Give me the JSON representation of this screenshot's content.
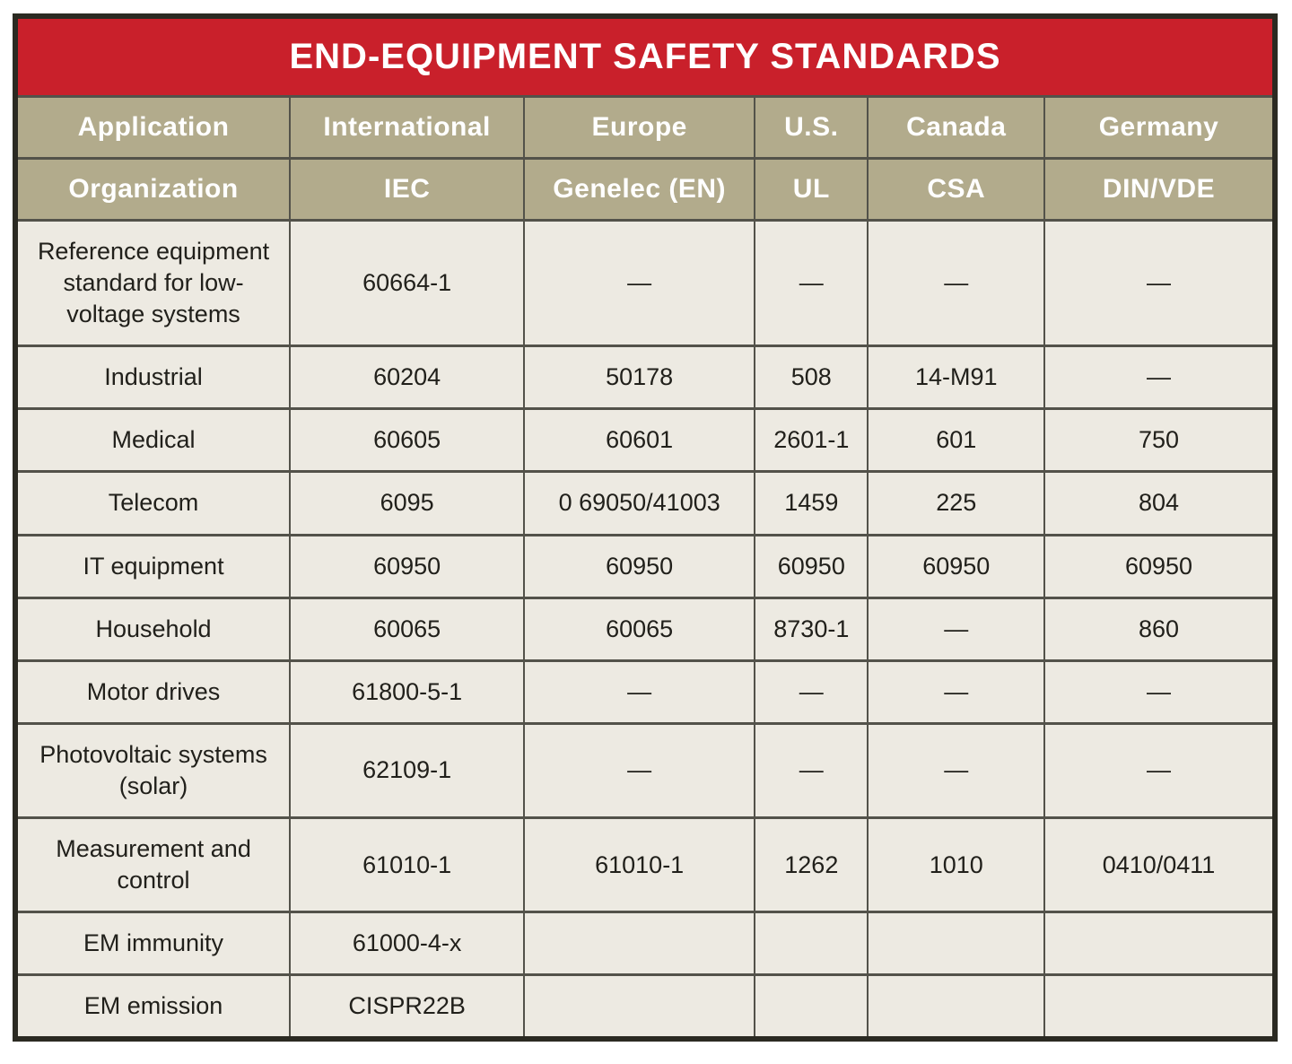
{
  "colors": {
    "title_bar_red": "#c9202b",
    "header_tan": "#b2ab8c",
    "cell_cream": "#edeae2",
    "grid_line": "#53524a",
    "outer_border": "#2b2a22",
    "header_text": "#ffffff",
    "body_text": "#21201b"
  },
  "chart_data": {
    "type": "table",
    "title": "END-EQUIPMENT SAFETY STANDARDS",
    "header_row_application": [
      "Application",
      "International",
      "Europe",
      "U.S.",
      "Canada",
      "Germany"
    ],
    "header_row_organization": [
      "Organization",
      "IEC",
      "Genelec (EN)",
      "UL",
      "CSA",
      "DIN/VDE"
    ],
    "rows": [
      [
        "Reference equipment standard for low-voltage systems",
        "60664-1",
        "—",
        "—",
        "—",
        "—"
      ],
      [
        "Industrial",
        "60204",
        "50178",
        "508",
        "14-M91",
        "—"
      ],
      [
        "Medical",
        "60605",
        "60601",
        "2601-1",
        "601",
        "750"
      ],
      [
        "Telecom",
        "6095",
        "0 69050/41003",
        "1459",
        "225",
        "804"
      ],
      [
        "IT equipment",
        "60950",
        "60950",
        "60950",
        "60950",
        "60950"
      ],
      [
        "Household",
        "60065",
        "60065",
        "8730-1",
        "—",
        "860"
      ],
      [
        "Motor drives",
        "61800-5-1",
        "—",
        "—",
        "—",
        "—"
      ],
      [
        "Photovoltaic systems (solar)",
        "62109-1",
        "—",
        "—",
        "—",
        "—"
      ],
      [
        "Measurement and control",
        "61010-1",
        "61010-1",
        "1262",
        "1010",
        "0410/0411"
      ],
      [
        "EM immunity",
        "61000-4-x",
        "",
        "",
        "",
        ""
      ],
      [
        "EM emission",
        "CISPR22B",
        "",
        "",
        "",
        ""
      ]
    ],
    "layout_hints": {
      "column_width_percents": [
        21.8,
        18.6,
        18.3,
        9.0,
        14.0,
        18.3
      ],
      "grid": "on",
      "title_position": "top-banner"
    }
  }
}
